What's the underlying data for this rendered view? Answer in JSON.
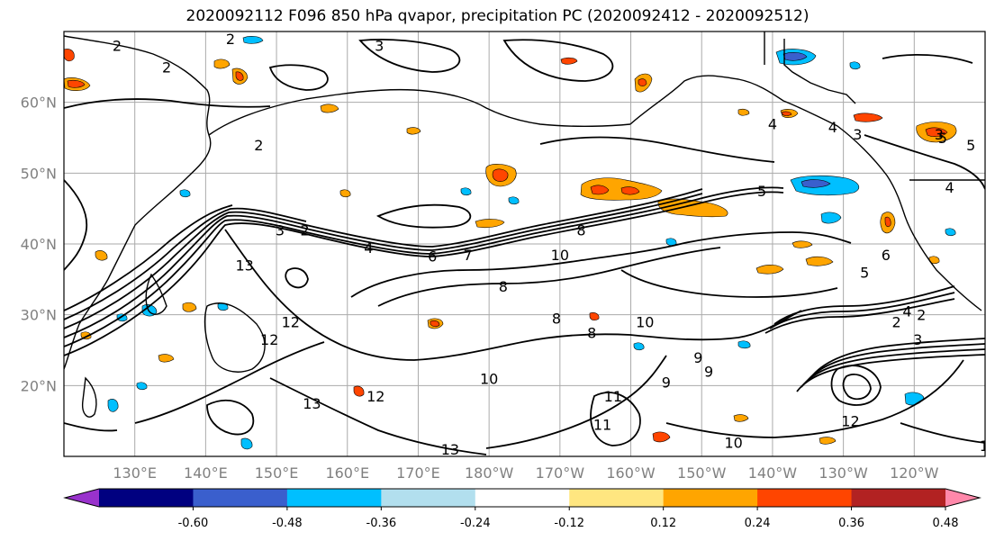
{
  "title": "2020092112 F096 850 hPa qvapor, precipitation PC (2020092412 - 2020092512)",
  "lat_labels": [
    {
      "label": "60°N",
      "lat": 60
    },
    {
      "label": "50°N",
      "lat": 50
    },
    {
      "label": "40°N",
      "lat": 40
    },
    {
      "label": "30°N",
      "lat": 30
    },
    {
      "label": "20°N",
      "lat": 20
    }
  ],
  "lon_labels": [
    {
      "label": "130°E",
      "lon": 130
    },
    {
      "label": "140°E",
      "lon": 140
    },
    {
      "label": "150°E",
      "lon": 150
    },
    {
      "label": "160°E",
      "lon": 160
    },
    {
      "label": "170°E",
      "lon": 170
    },
    {
      "label": "180°W",
      "lon": 180
    },
    {
      "label": "170°W",
      "lon": 190
    },
    {
      "label": "160°W",
      "lon": 200
    },
    {
      "label": "150°W",
      "lon": 210
    },
    {
      "label": "140°W",
      "lon": 220
    },
    {
      "label": "130°W",
      "lon": 230
    },
    {
      "label": "120°W",
      "lon": 240
    }
  ],
  "map_extent": {
    "lon_min": 120,
    "lon_max": 250,
    "lat_min": 10,
    "lat_max": 70
  },
  "contour_labels": [
    {
      "text": "2",
      "lon": 127.5,
      "lat": 68
    },
    {
      "text": "2",
      "lon": 143.5,
      "lat": 69
    },
    {
      "text": "2",
      "lon": 134.5,
      "lat": 65
    },
    {
      "text": "3",
      "lon": 164.5,
      "lat": 68
    },
    {
      "text": "2",
      "lon": 147.5,
      "lat": 54
    },
    {
      "text": "3",
      "lon": 150.5,
      "lat": 42
    },
    {
      "text": "2",
      "lon": 154,
      "lat": 42
    },
    {
      "text": "13",
      "lon": 145.5,
      "lat": 37
    },
    {
      "text": "12",
      "lon": 152,
      "lat": 29
    },
    {
      "text": "12",
      "lon": 149,
      "lat": 26.5
    },
    {
      "text": "4",
      "lon": 163,
      "lat": 39.5
    },
    {
      "text": "7",
      "lon": 177,
      "lat": 38.5
    },
    {
      "text": "6",
      "lon": 172,
      "lat": 38.3
    },
    {
      "text": "8",
      "lon": 193,
      "lat": 42
    },
    {
      "text": "10",
      "lon": 190,
      "lat": 38.5
    },
    {
      "text": "8",
      "lon": 182,
      "lat": 34
    },
    {
      "text": "5",
      "lon": 218.5,
      "lat": 47.5
    },
    {
      "text": "8",
      "lon": 189.5,
      "lat": 29.5
    },
    {
      "text": "8",
      "lon": 194.5,
      "lat": 27.5
    },
    {
      "text": "10",
      "lon": 202,
      "lat": 29
    },
    {
      "text": "9",
      "lon": 209.5,
      "lat": 24
    },
    {
      "text": "9",
      "lon": 205,
      "lat": 20.5
    },
    {
      "text": "9",
      "lon": 211,
      "lat": 22
    },
    {
      "text": "10",
      "lon": 180,
      "lat": 21
    },
    {
      "text": "11",
      "lon": 197.5,
      "lat": 18.5
    },
    {
      "text": "11",
      "lon": 196,
      "lat": 14.5
    },
    {
      "text": "10",
      "lon": 214.5,
      "lat": 12
    },
    {
      "text": "12",
      "lon": 231,
      "lat": 15
    },
    {
      "text": "13",
      "lon": 155,
      "lat": 17.5
    },
    {
      "text": "12",
      "lon": 164,
      "lat": 18.5
    },
    {
      "text": "13",
      "lon": 174.5,
      "lat": 11
    },
    {
      "text": "3",
      "lon": 240.5,
      "lat": 26.5
    },
    {
      "text": "4",
      "lon": 239,
      "lat": 30.5
    },
    {
      "text": "2",
      "lon": 237.5,
      "lat": 29
    },
    {
      "text": "6",
      "lon": 236,
      "lat": 38.5
    },
    {
      "text": "5",
      "lon": 233,
      "lat": 36
    },
    {
      "text": "3",
      "lon": 232,
      "lat": 55.5
    },
    {
      "text": "4",
      "lon": 228.5,
      "lat": 56.5
    },
    {
      "text": "3",
      "lon": 243.5,
      "lat": 55.5
    },
    {
      "text": "5",
      "lon": 244,
      "lat": 55
    },
    {
      "text": "5",
      "lon": 248,
      "lat": 54
    },
    {
      "text": "4",
      "lon": 245,
      "lat": 48
    },
    {
      "text": "4",
      "lon": 250.5,
      "lat": 66
    },
    {
      "text": "4",
      "lon": 220,
      "lat": 57
    },
    {
      "text": "2",
      "lon": 241,
      "lat": 30
    },
    {
      "text": "11",
      "lon": 250.5,
      "lat": 11.5
    }
  ],
  "colorbar": {
    "colors": [
      "#9932CC",
      "#000080",
      "#3A5FCD",
      "#00BFFF",
      "#B2DFEE",
      "#FFFFFF",
      "#FFE680",
      "#FFA500",
      "#FF4500",
      "#B22222",
      "#FF88AA"
    ],
    "tick_labels": [
      "-0.60",
      "-0.48",
      "-0.36",
      "-0.24",
      "-0.12",
      "0.12",
      "0.24",
      "0.36",
      "0.48",
      "0.60"
    ]
  }
}
